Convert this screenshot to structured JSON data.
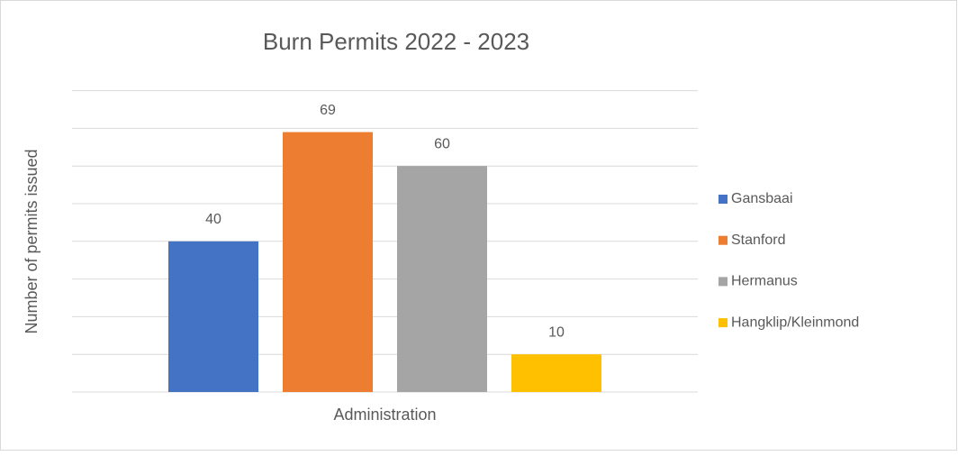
{
  "chart_data": {
    "type": "bar",
    "title": "Burn Permits 2022 - 2023",
    "x_label": "Administration",
    "y_label": "Number of permits issued",
    "categories": [
      "Administration"
    ],
    "series": [
      {
        "name": "Gansbaai",
        "color": "#4472c4",
        "values": [
          40
        ]
      },
      {
        "name": "Stanford",
        "color": "#ed7d31",
        "values": [
          69
        ]
      },
      {
        "name": "Hermanus",
        "color": "#a5a5a5",
        "values": [
          60
        ]
      },
      {
        "name": "Hangklip/Kleinmond",
        "color": "#ffc000",
        "values": [
          10
        ]
      }
    ],
    "ylim": [
      0,
      80
    ],
    "yticks": [
      0,
      10,
      20,
      30,
      40,
      50,
      60,
      70,
      80
    ],
    "grid": true,
    "legend": "right"
  }
}
